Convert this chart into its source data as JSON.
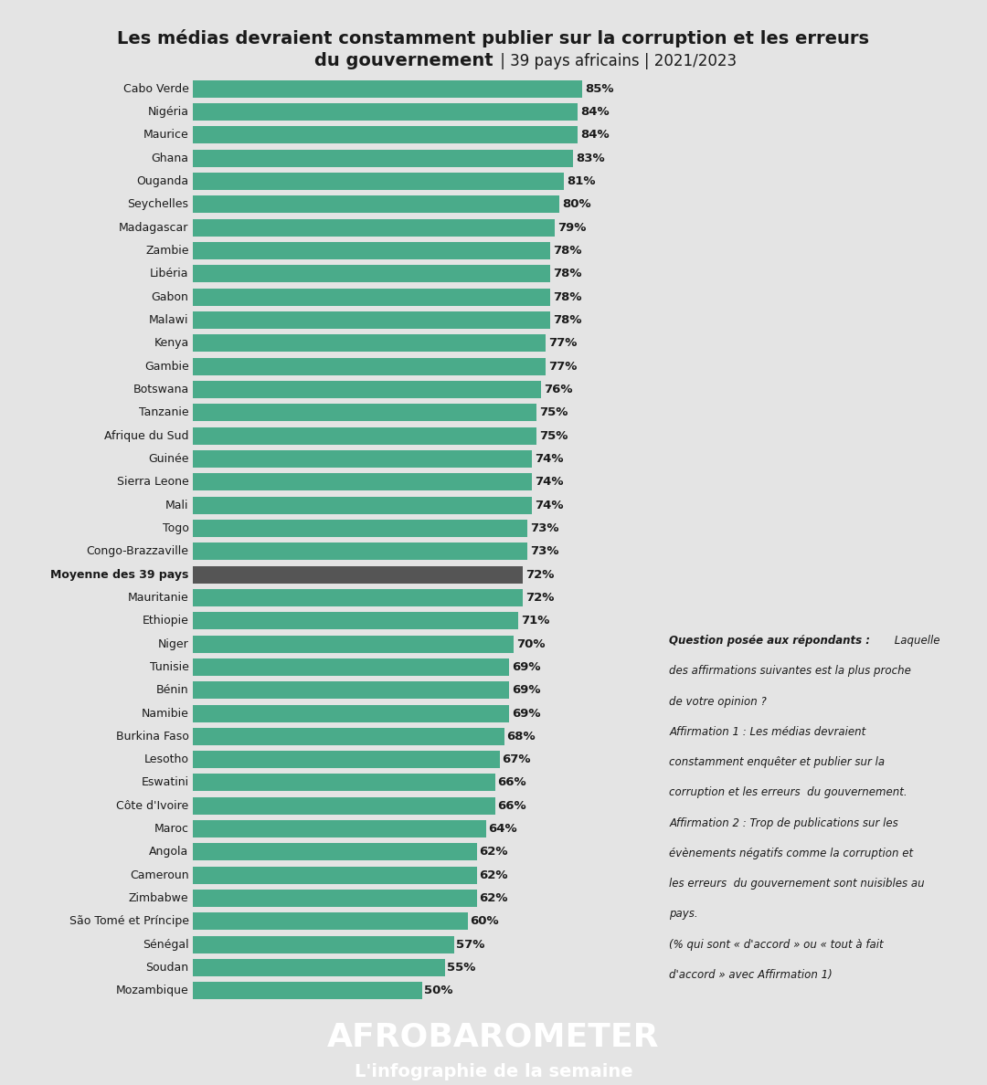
{
  "title_line1": "Les médias devraient constamment publier sur la corruption et les erreurs",
  "title_line2_bold": "du gouvernement",
  "title_line2_normal": " | 39 pays africains | 2021/2023",
  "countries": [
    "Cabo Verde",
    "Nigéria",
    "Maurice",
    "Ghana",
    "Ouganda",
    "Seychelles",
    "Madagascar",
    "Zambie",
    "Libéria",
    "Gabon",
    "Malawi",
    "Kenya",
    "Gambie",
    "Botswana",
    "Tanzanie",
    "Afrique du Sud",
    "Guinée",
    "Sierra Leone",
    "Mali",
    "Togo",
    "Congo-Brazzaville",
    "Moyenne des 39 pays",
    "Mauritanie",
    "Ethiopie",
    "Niger",
    "Tunisie",
    "Bénin",
    "Namibie",
    "Burkina Faso",
    "Lesotho",
    "Eswatini",
    "Côte d'Ivoire",
    "Maroc",
    "Angola",
    "Cameroun",
    "Zimbabwe",
    "São Tomé et Príncipe",
    "Sénégal",
    "Soudan",
    "Mozambique"
  ],
  "values": [
    85,
    84,
    84,
    83,
    81,
    80,
    79,
    78,
    78,
    78,
    78,
    77,
    77,
    76,
    75,
    75,
    74,
    74,
    74,
    73,
    73,
    72,
    72,
    71,
    70,
    69,
    69,
    69,
    68,
    67,
    66,
    66,
    64,
    62,
    62,
    62,
    60,
    57,
    55,
    50
  ],
  "average_country": "Moyenne des 39 pays",
  "bar_color_normal": "#4aab8a",
  "bar_color_average": "#555555",
  "bg_color": "#e4e4e4",
  "footer_bg": "#595959",
  "text_color": "#1a1a1a",
  "footer_text1": "AFROBAROMETER",
  "footer_text2": "L'infographie de la semaine",
  "ann_bold": "Question posée aux répondants :",
  "ann_italic_first": " Laquelle",
  "ann_italic_rest": "des affirmations suivantes est la plus proche\nde votre opinion ?\nAffirmation 1 : Les médias devraient\nconstamment enquêter et publier sur la\ncorruption et les erreurs  du gouvernement.\nAffirmation 2 : Trop de publications sur les\névènements négatifs comme la corruption et\nles erreurs  du gouvernement sont nuisibles au\npays.\n(% qui sont « d'accord » ou « tout à fait\nd'accord » avec Affirmation 1)"
}
